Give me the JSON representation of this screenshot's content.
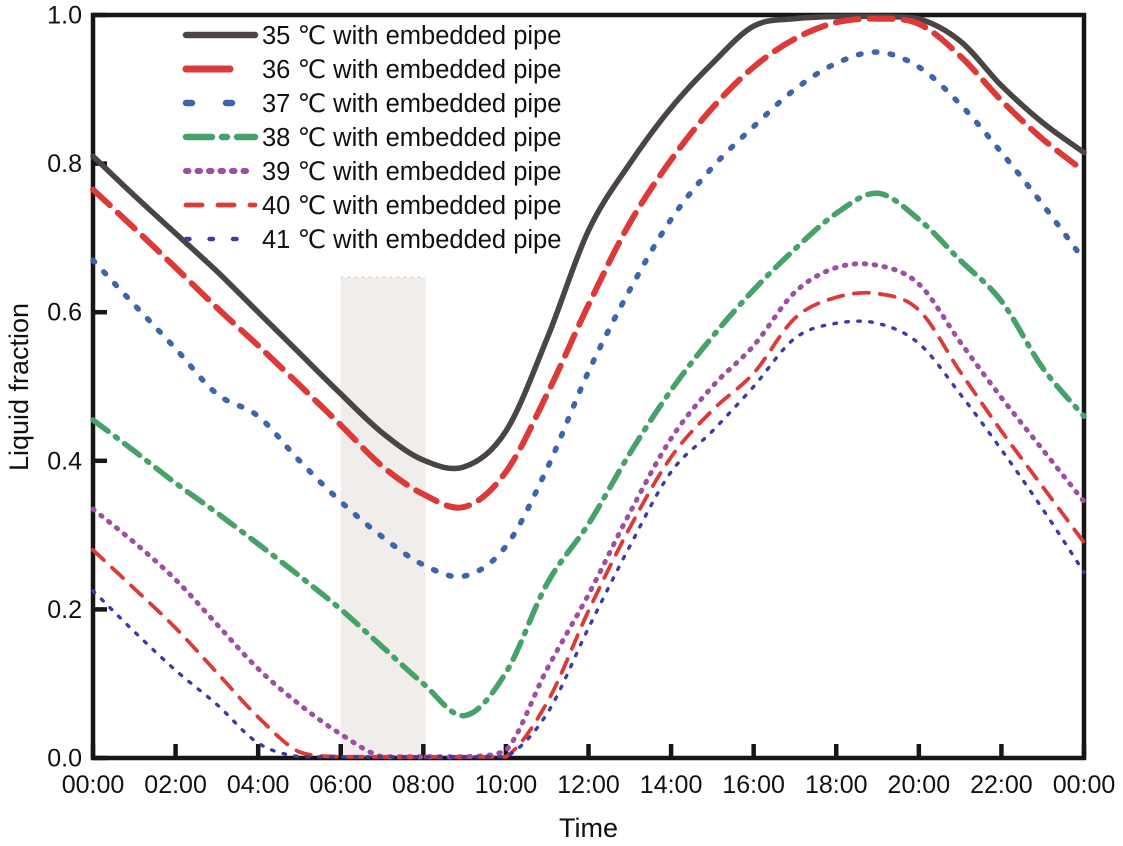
{
  "page": {
    "background": "#ffffff"
  },
  "chart_data": {
    "type": "line",
    "title": "",
    "xlabel": "Time",
    "ylabel": "Liquid fraction",
    "x_unit": "hours",
    "xlim": [
      0,
      24
    ],
    "ylim": [
      0.0,
      1.0
    ],
    "grid": false,
    "legend_position": "top-left",
    "x_tick_hours": [
      0,
      2,
      4,
      6,
      8,
      10,
      12,
      14,
      16,
      18,
      20,
      22,
      24
    ],
    "x_tick_labels": [
      "00:00",
      "02:00",
      "04:00",
      "06:00",
      "08:00",
      "10:00",
      "12:00",
      "14:00",
      "16:00",
      "18:00",
      "20:00",
      "22:00",
      "00:00"
    ],
    "y_tick_values": [
      0.0,
      0.2,
      0.4,
      0.6,
      0.8,
      1.0
    ],
    "y_tick_labels": [
      "0.0",
      "0.2",
      "0.4",
      "0.6",
      "0.8",
      "1.0"
    ],
    "shaded_region": {
      "x_from_hour": 6.0,
      "x_to_hour": 8.05,
      "y_from": 0.0,
      "y_to": 0.647,
      "fill": "#f0edea",
      "top_edge_color": "#d8d2cd"
    },
    "sample_hours": [
      0,
      1,
      2,
      3,
      4,
      5,
      6,
      7,
      8,
      9,
      10,
      11,
      12,
      13,
      14,
      15,
      16,
      17,
      18,
      19,
      20,
      21,
      22,
      23,
      24
    ],
    "series": [
      {
        "name": "35 ℃ with embedded pipe",
        "color": "#4a4442",
        "width": 5.5,
        "dash": "",
        "legend_dash": "",
        "linecap": "round",
        "values": [
          0.81,
          0.757,
          0.706,
          0.655,
          0.6,
          0.545,
          0.49,
          0.438,
          0.401,
          0.392,
          0.44,
          0.565,
          0.71,
          0.8,
          0.875,
          0.935,
          0.985,
          0.995,
          0.998,
          0.998,
          0.995,
          0.965,
          0.905,
          0.855,
          0.815
        ]
      },
      {
        "name": "36 ℃ with embedded pipe",
        "color": "#dc3a39",
        "width": 6.0,
        "dash": "23 11",
        "legend_dash": "44 60",
        "linecap": "round",
        "values": [
          0.765,
          0.713,
          0.66,
          0.606,
          0.555,
          0.502,
          0.448,
          0.393,
          0.355,
          0.338,
          0.385,
          0.49,
          0.61,
          0.72,
          0.805,
          0.875,
          0.93,
          0.968,
          0.99,
          0.995,
          0.988,
          0.945,
          0.885,
          0.833,
          0.79
        ]
      },
      {
        "name": "37 ℃ with embedded pipe",
        "color": "#3e64aa",
        "width": 5.5,
        "dash": "2.5 13.5",
        "legend_dash": "6 34",
        "linecap": "round",
        "values": [
          0.67,
          0.61,
          0.551,
          0.49,
          0.46,
          0.4,
          0.345,
          0.298,
          0.26,
          0.245,
          0.285,
          0.39,
          0.52,
          0.63,
          0.725,
          0.795,
          0.85,
          0.9,
          0.935,
          0.95,
          0.93,
          0.88,
          0.815,
          0.745,
          0.67
        ]
      },
      {
        "name": "38 ℃ with embedded pipe",
        "color": "#47a16a",
        "width": 5.5,
        "dash": "19 9 2.5 9",
        "legend_dash": "26 10 5 10",
        "linecap": "round",
        "values": [
          0.455,
          0.413,
          0.37,
          0.33,
          0.288,
          0.245,
          0.2,
          0.15,
          0.1,
          0.057,
          0.115,
          0.235,
          0.315,
          0.41,
          0.495,
          0.567,
          0.63,
          0.685,
          0.733,
          0.76,
          0.725,
          0.67,
          0.615,
          0.525,
          0.46
        ]
      },
      {
        "name": "39 ℃ with embedded pipe",
        "color": "#9c50a2",
        "width": 5.0,
        "dash": "1.5 8.5",
        "legend_dash": "2.5 9",
        "linecap": "round",
        "values": [
          0.335,
          0.29,
          0.24,
          0.18,
          0.12,
          0.072,
          0.032,
          0.0,
          0.0,
          0.0,
          0.01,
          0.12,
          0.22,
          0.33,
          0.43,
          0.5,
          0.555,
          0.627,
          0.66,
          0.663,
          0.638,
          0.56,
          0.485,
          0.415,
          0.345
        ]
      },
      {
        "name": "40 ℃ with embedded pipe",
        "color": "#dc3a39",
        "width": 3.8,
        "dash": "15 11",
        "legend_dash": "16 16",
        "linecap": "round",
        "values": [
          0.28,
          0.228,
          0.175,
          0.115,
          0.055,
          0.008,
          0.0,
          0.0,
          0.0,
          0.0,
          0.0,
          0.075,
          0.198,
          0.31,
          0.405,
          0.468,
          0.518,
          0.592,
          0.62,
          0.625,
          0.603,
          0.52,
          0.44,
          0.365,
          0.29
        ]
      },
      {
        "name": "41 ℃ with embedded pipe",
        "color": "#3d3c9f",
        "width": 3.4,
        "dash": "2.5 9.5",
        "legend_dash": "3.5 20",
        "linecap": "round",
        "values": [
          0.225,
          0.17,
          0.118,
          0.072,
          0.02,
          0.0,
          0.0,
          0.0,
          0.0,
          0.0,
          0.0,
          0.06,
          0.175,
          0.285,
          0.385,
          0.44,
          0.5,
          0.565,
          0.585,
          0.585,
          0.558,
          0.49,
          0.415,
          0.335,
          0.25
        ]
      }
    ]
  }
}
